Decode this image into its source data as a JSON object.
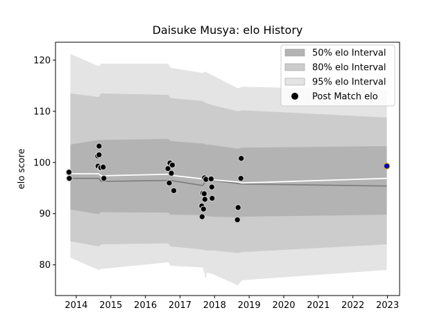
{
  "chart_data": {
    "type": "area",
    "title": "Daisuke Musya: elo History",
    "xlabel": "",
    "ylabel": "elo score",
    "xlim": [
      2013.4,
      2023.35
    ],
    "ylim": [
      74.0,
      123.5
    ],
    "x_ticks": [
      2014,
      2015,
      2016,
      2017,
      2018,
      2019,
      2020,
      2021,
      2022,
      2023
    ],
    "y_ticks": [
      80,
      90,
      100,
      110,
      120
    ],
    "grid": false,
    "legend_position": "top-right",
    "legend": [
      {
        "label": "50% elo Interval",
        "kind": "band",
        "color": "#b3b3b3"
      },
      {
        "label": "80% elo Interval",
        "kind": "band",
        "color": "#cccccc"
      },
      {
        "label": "95% elo Interval",
        "kind": "band",
        "color": "#e4e4e4"
      },
      {
        "label": "Post Match elo",
        "kind": "marker",
        "color": "#000000"
      }
    ],
    "bands": {
      "x": [
        2013.83,
        2014.65,
        2014.72,
        2016.66,
        2016.73,
        2017.66,
        2017.75,
        2017.77,
        2017.95,
        2018.67,
        2018.8,
        2022.98
      ],
      "p95_lo": [
        81.4,
        79.0,
        79.2,
        80.5,
        79.8,
        79.5,
        77.2,
        78.5,
        78.2,
        76.0,
        77.0,
        79.0
      ],
      "p95_hi": [
        121.2,
        118.8,
        119.3,
        119.3,
        118.5,
        117.5,
        117.8,
        117.6,
        117.0,
        114.5,
        114.8,
        114.2
      ],
      "p80_lo": [
        84.6,
        83.6,
        84.0,
        84.2,
        83.6,
        83.0,
        82.8,
        82.8,
        82.8,
        82.3,
        82.5,
        84.0
      ],
      "p80_hi": [
        113.5,
        112.8,
        113.5,
        113.2,
        112.6,
        112.0,
        111.6,
        111.6,
        111.2,
        110.0,
        110.2,
        108.8
      ],
      "p50_lo": [
        90.8,
        89.9,
        90.3,
        90.2,
        89.8,
        89.7,
        89.7,
        89.5,
        89.4,
        89.3,
        89.4,
        89.8
      ],
      "p50_hi": [
        103.5,
        104.4,
        104.4,
        104.6,
        104.2,
        103.7,
        103.5,
        103.5,
        103.4,
        102.7,
        102.9,
        103.2
      ]
    },
    "series": [
      {
        "kind": "line",
        "color": "#808080",
        "x": [
          2013.83,
          2014.65,
          2014.72,
          2016.66,
          2016.73,
          2017.66,
          2017.75,
          2017.95,
          2018.67,
          2018.8,
          2022.98
        ],
        "y": [
          96.9,
          96.9,
          96.3,
          96.5,
          96.5,
          95.5,
          96.5,
          96.5,
          95.9,
          95.8,
          95.4
        ]
      },
      {
        "kind": "line",
        "color": "#ffffff",
        "x": [
          2013.83,
          2014.65,
          2014.72,
          2016.66,
          2016.73,
          2017.66,
          2017.75,
          2017.95,
          2018.67,
          2018.8,
          2022.98
        ],
        "y": [
          97.8,
          97.8,
          97.4,
          97.7,
          97.5,
          96.8,
          97.0,
          96.6,
          96.2,
          96.0,
          96.9
        ]
      },
      {
        "name": "Post Match elo",
        "kind": "scatter",
        "color": "#000000",
        "x": [
          2013.79,
          2013.8,
          2014.62,
          2014.63,
          2014.66,
          2014.66,
          2014.7,
          2014.71,
          2014.78,
          2014.8,
          2016.65,
          2016.69,
          2016.71,
          2016.75,
          2016.78,
          2016.82,
          2017.63,
          2017.64,
          2017.66,
          2017.68,
          2017.7,
          2017.71,
          2017.72,
          2017.75,
          2017.9,
          2017.92,
          2017.93,
          2018.66,
          2018.68,
          2018.76,
          2018.77
        ],
        "y": [
          98.1,
          96.9,
          101.3,
          99.3,
          101.5,
          103.2,
          98.9,
          99.0,
          99.1,
          96.9,
          98.8,
          96.0,
          99.9,
          97.9,
          99.5,
          94.5,
          91.5,
          89.4,
          94.0,
          90.9,
          93.9,
          97.0,
          92.8,
          96.7,
          96.8,
          95.2,
          93.0,
          88.8,
          91.2,
          96.9,
          100.8
        ]
      },
      {
        "name": "",
        "kind": "scatter",
        "color": "#0000cc",
        "edge_color": "#d4b000",
        "x": [
          2022.98
        ],
        "y": [
          99.3
        ]
      }
    ]
  }
}
